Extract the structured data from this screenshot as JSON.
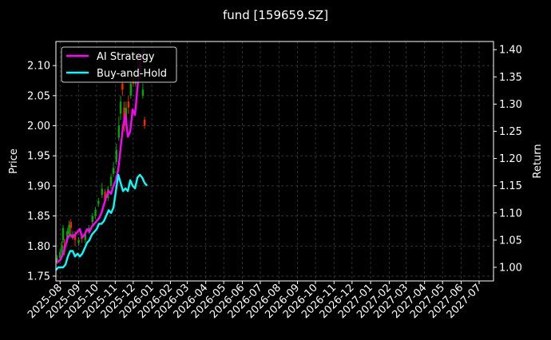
{
  "chart_data": {
    "type": "line",
    "title": "fund [159659.SZ]",
    "ylabel_left": "Price",
    "ylabel_right": "Return",
    "ylim_left": [
      1.742,
      2.14
    ],
    "ylim_right": [
      0.975,
      1.415
    ],
    "xlim": [
      "2025-07-25",
      "2027-07-25"
    ],
    "grid": true,
    "legend_placement": "top-left",
    "x_ticks": [
      "2025-08",
      "2025-09",
      "2025-10",
      "2025-11",
      "2025-12",
      "2026-01",
      "2026-02",
      "2026-03",
      "2026-04",
      "2026-05",
      "2026-06",
      "2026-07",
      "2026-08",
      "2026-09",
      "2026-10",
      "2026-11",
      "2026-12",
      "2027-01",
      "2027-02",
      "2027-03",
      "2027-04",
      "2027-05",
      "2027-06",
      "2027-07"
    ],
    "y_ticks_left": [
      "1.75",
      "1.80",
      "1.85",
      "1.90",
      "1.95",
      "2.00",
      "2.05",
      "2.10"
    ],
    "y_ticks_right": [
      "1.00",
      "1.05",
      "1.10",
      "1.15",
      "1.20",
      "1.25",
      "1.30",
      "1.35",
      "1.40"
    ],
    "colors": {
      "ai": "#ff00ff",
      "bh": "#00ffff",
      "up": "#00aa00",
      "down": "#ff2200",
      "grid": "#444444",
      "axes": "#ffffff"
    },
    "series": [
      {
        "name": "AI Strategy",
        "axis": "right",
        "x": [
          "2025-07-25",
          "2025-07-29",
          "2025-08-02",
          "2025-08-06",
          "2025-08-10",
          "2025-08-14",
          "2025-08-18",
          "2025-08-22",
          "2025-08-26",
          "2025-08-30",
          "2025-09-03",
          "2025-09-07",
          "2025-09-11",
          "2025-09-15",
          "2025-09-19",
          "2025-09-23",
          "2025-09-27",
          "2025-10-01",
          "2025-10-05",
          "2025-10-09",
          "2025-10-13",
          "2025-10-17",
          "2025-10-21",
          "2025-10-25",
          "2025-10-29",
          "2025-11-02",
          "2025-11-06",
          "2025-11-10",
          "2025-11-14",
          "2025-11-18",
          "2025-11-22",
          "2025-11-26",
          "2025-11-30",
          "2025-12-04",
          "2025-12-08",
          "2025-12-12",
          "2025-12-16",
          "2025-12-20"
        ],
        "values": [
          1.01,
          1.01,
          1.015,
          1.025,
          1.04,
          1.055,
          1.06,
          1.055,
          1.06,
          1.065,
          1.07,
          1.055,
          1.06,
          1.07,
          1.065,
          1.075,
          1.08,
          1.085,
          1.09,
          1.1,
          1.115,
          1.13,
          1.14,
          1.135,
          1.15,
          1.16,
          1.18,
          1.22,
          1.26,
          1.28,
          1.24,
          1.25,
          1.29,
          1.28,
          1.33,
          1.37,
          1.39,
          1.4
        ]
      },
      {
        "name": "Buy-and-Hold",
        "axis": "right",
        "x": [
          "2025-07-25",
          "2025-07-29",
          "2025-08-02",
          "2025-08-06",
          "2025-08-10",
          "2025-08-14",
          "2025-08-18",
          "2025-08-22",
          "2025-08-26",
          "2025-08-30",
          "2025-09-03",
          "2025-09-07",
          "2025-09-11",
          "2025-09-15",
          "2025-09-19",
          "2025-09-23",
          "2025-09-27",
          "2025-10-01",
          "2025-10-05",
          "2025-10-09",
          "2025-10-13",
          "2025-10-17",
          "2025-10-21",
          "2025-10-25",
          "2025-10-29",
          "2025-11-02",
          "2025-11-06",
          "2025-11-10",
          "2025-11-14",
          "2025-11-18",
          "2025-11-22",
          "2025-11-26",
          "2025-11-30",
          "2025-12-04",
          "2025-12-08",
          "2025-12-12",
          "2025-12-16",
          "2025-12-20",
          "2025-12-24"
        ],
        "values": [
          0.995,
          1.0,
          1.0,
          1.0,
          1.005,
          1.02,
          1.03,
          1.03,
          1.02,
          1.025,
          1.02,
          1.025,
          1.035,
          1.045,
          1.05,
          1.06,
          1.065,
          1.07,
          1.08,
          1.08,
          1.085,
          1.095,
          1.105,
          1.1,
          1.11,
          1.14,
          1.17,
          1.155,
          1.14,
          1.145,
          1.14,
          1.16,
          1.15,
          1.145,
          1.165,
          1.17,
          1.165,
          1.155,
          1.15
        ]
      }
    ],
    "candles": [
      {
        "x": "2025-07-27",
        "open": 1.775,
        "close": 1.78,
        "high": 1.785,
        "low": 1.77
      },
      {
        "x": "2025-08-01",
        "open": 1.78,
        "close": 1.79,
        "high": 1.795,
        "low": 1.775
      },
      {
        "x": "2025-08-04",
        "open": 1.79,
        "close": 1.802,
        "high": 1.808,
        "low": 1.785
      },
      {
        "x": "2025-08-06",
        "open": 1.81,
        "close": 1.83,
        "high": 1.835,
        "low": 1.805
      },
      {
        "x": "2025-08-08",
        "open": 1.8,
        "close": 1.79,
        "high": 1.812,
        "low": 1.785
      },
      {
        "x": "2025-08-13",
        "open": 1.81,
        "close": 1.825,
        "high": 1.83,
        "low": 1.805
      },
      {
        "x": "2025-08-16",
        "open": 1.82,
        "close": 1.835,
        "high": 1.842,
        "low": 1.815
      },
      {
        "x": "2025-08-19",
        "open": 1.84,
        "close": 1.83,
        "high": 1.845,
        "low": 1.82
      },
      {
        "x": "2025-08-22",
        "open": 1.815,
        "close": 1.82,
        "high": 1.825,
        "low": 1.81
      },
      {
        "x": "2025-08-26",
        "open": 1.82,
        "close": 1.81,
        "high": 1.825,
        "low": 1.8
      },
      {
        "x": "2025-09-01",
        "open": 1.805,
        "close": 1.81,
        "high": 1.815,
        "low": 1.8
      },
      {
        "x": "2025-09-06",
        "open": 1.815,
        "close": 1.812,
        "high": 1.82,
        "low": 1.805
      },
      {
        "x": "2025-09-12",
        "open": 1.81,
        "close": 1.82,
        "high": 1.825,
        "low": 1.805
      },
      {
        "x": "2025-09-18",
        "open": 1.825,
        "close": 1.83,
        "high": 1.835,
        "low": 1.82
      },
      {
        "x": "2025-09-24",
        "open": 1.84,
        "close": 1.85,
        "high": 1.855,
        "low": 1.835
      },
      {
        "x": "2025-09-29",
        "open": 1.85,
        "close": 1.86,
        "high": 1.865,
        "low": 1.845
      },
      {
        "x": "2025-10-04",
        "open": 1.87,
        "close": 1.875,
        "high": 1.88,
        "low": 1.865
      },
      {
        "x": "2025-10-10",
        "open": 1.885,
        "close": 1.895,
        "high": 1.905,
        "low": 1.88
      },
      {
        "x": "2025-10-15",
        "open": 1.89,
        "close": 1.875,
        "high": 1.895,
        "low": 1.87
      },
      {
        "x": "2025-10-20",
        "open": 1.88,
        "close": 1.895,
        "high": 1.9,
        "low": 1.875
      },
      {
        "x": "2025-10-25",
        "open": 1.9,
        "close": 1.915,
        "high": 1.92,
        "low": 1.895
      },
      {
        "x": "2025-10-29",
        "open": 1.92,
        "close": 1.93,
        "high": 1.94,
        "low": 1.915
      },
      {
        "x": "2025-11-03",
        "open": 1.94,
        "close": 1.96,
        "high": 1.97,
        "low": 1.935
      },
      {
        "x": "2025-11-07",
        "open": 1.98,
        "close": 2.0,
        "high": 2.015,
        "low": 1.975
      },
      {
        "x": "2025-11-10",
        "open": 2.02,
        "close": 2.04,
        "high": 2.05,
        "low": 2.01
      },
      {
        "x": "2025-11-13",
        "open": 2.07,
        "close": 2.06,
        "high": 2.08,
        "low": 2.05
      },
      {
        "x": "2025-11-16",
        "open": 2.03,
        "close": 2.0,
        "high": 2.04,
        "low": 1.99
      },
      {
        "x": "2025-11-19",
        "open": 2.0,
        "close": 2.03,
        "high": 2.04,
        "low": 1.995
      },
      {
        "x": "2025-11-23",
        "open": 2.04,
        "close": 2.03,
        "high": 2.05,
        "low": 2.02
      },
      {
        "x": "2025-11-27",
        "open": 2.05,
        "close": 2.07,
        "high": 2.08,
        "low": 2.045
      },
      {
        "x": "2025-12-01",
        "open": 2.08,
        "close": 2.07,
        "high": 2.09,
        "low": 2.065
      },
      {
        "x": "2025-12-05",
        "open": 2.07,
        "close": 2.09,
        "high": 2.1,
        "low": 2.065
      },
      {
        "x": "2025-12-09",
        "open": 2.1,
        "close": 2.095,
        "high": 2.11,
        "low": 2.09
      },
      {
        "x": "2025-12-13",
        "open": 2.08,
        "close": 2.1,
        "high": 2.105,
        "low": 2.075
      },
      {
        "x": "2025-12-17",
        "open": 2.05,
        "close": 2.06,
        "high": 2.07,
        "low": 2.045
      },
      {
        "x": "2025-12-20",
        "open": 2.01,
        "close": 2.0,
        "high": 2.015,
        "low": 1.995
      }
    ]
  }
}
